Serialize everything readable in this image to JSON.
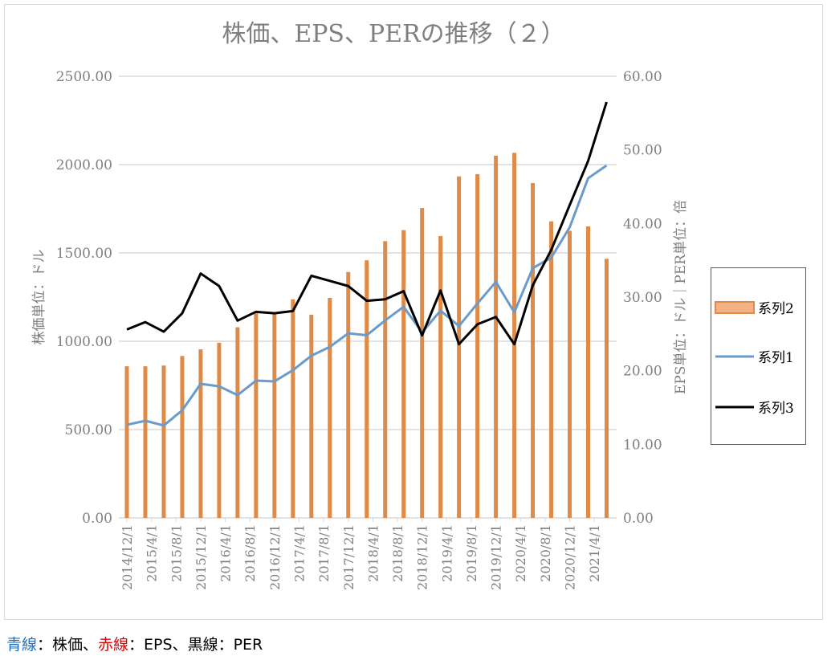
{
  "chart_data": {
    "type": "bar+line",
    "title": "株価、EPS、PERの推移（２）",
    "ylabel_left": "株価単位：ドル",
    "ylabel_right": "EPS単位：ドル｜PER単位：倍",
    "ylim_left": [
      0,
      2500
    ],
    "ylim_right": [
      0,
      60
    ],
    "yticks_left": [
      "0.00",
      "500.00",
      "1000.00",
      "1500.00",
      "2000.00",
      "2500.00"
    ],
    "yticks_right": [
      "0.00",
      "10.00",
      "20.00",
      "30.00",
      "40.00",
      "50.00",
      "60.00"
    ],
    "xtick_labels": [
      "2014/12/1",
      "2015/4/1",
      "2015/8/1",
      "2015/12/1",
      "2016/4/1",
      "2016/8/1",
      "2016/12/1",
      "2017/4/1",
      "2017/8/1",
      "2017/12/1",
      "2018/4/1",
      "2018/8/1",
      "2018/12/1",
      "2019/4/1",
      "2019/8/1",
      "2019/12/1",
      "2020/4/1",
      "2020/8/1",
      "2020/12/1",
      "2021/4/1"
    ],
    "x": [
      "2014/12",
      "2015/3",
      "2015/6",
      "2015/9",
      "2015/12",
      "2016/3",
      "2016/6",
      "2016/9",
      "2016/12",
      "2017/3",
      "2017/6",
      "2017/9",
      "2017/12",
      "2018/3",
      "2018/6",
      "2018/9",
      "2018/12",
      "2019/3",
      "2019/6",
      "2019/9",
      "2019/12",
      "2020/3",
      "2020/6",
      "2020/9",
      "2020/12",
      "2021/3",
      "2021/6"
    ],
    "grid": true,
    "legend_position": "right",
    "series": [
      {
        "name": "系列2",
        "type": "bar",
        "axis": "right",
        "color": "#E08A47",
        "values": [
          20.6,
          20.6,
          20.7,
          22.0,
          22.9,
          23.8,
          25.9,
          27.8,
          27.8,
          29.7,
          27.6,
          29.9,
          33.4,
          35.0,
          37.6,
          39.1,
          42.1,
          38.3,
          46.4,
          46.7,
          49.2,
          49.6,
          45.5,
          40.3,
          39.0,
          39.6,
          35.2
        ]
      },
      {
        "name": "系列1",
        "type": "line",
        "axis": "left",
        "color": "#6A9BCB",
        "values": [
          527,
          550,
          523,
          609,
          759,
          745,
          695,
          777,
          773,
          836,
          918,
          968,
          1045,
          1034,
          1118,
          1195,
          1050,
          1173,
          1086,
          1214,
          1336,
          1164,
          1414,
          1473,
          1645,
          1923,
          1995
        ]
      },
      {
        "name": "系列3",
        "type": "line",
        "axis": "right",
        "color": "#000000",
        "values": [
          25.6,
          26.6,
          25.3,
          27.8,
          33.2,
          31.5,
          26.8,
          28.0,
          27.8,
          28.1,
          32.9,
          32.2,
          31.5,
          29.5,
          29.7,
          30.8,
          24.8,
          30.9,
          23.6,
          26.3,
          27.3,
          23.6,
          31.6,
          36.4,
          42.5,
          48.5,
          56.5
        ]
      }
    ]
  },
  "caption": {
    "parts": [
      {
        "text": "青線",
        "color": "#1F6FC0"
      },
      {
        "text": "：株価、",
        "color": "#000000"
      },
      {
        "text": "赤線",
        "color": "#E00000"
      },
      {
        "text": "：EPS、黒線：PER",
        "color": "#000000"
      }
    ]
  }
}
